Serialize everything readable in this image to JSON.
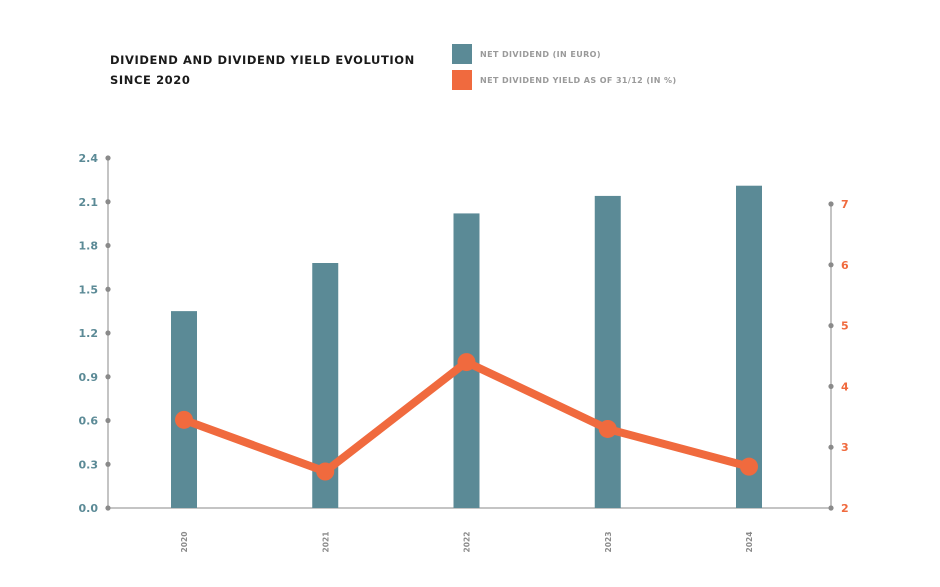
{
  "title_line1": "DIVIDEND AND DIVIDEND YIELD EVOLUTION",
  "title_line2": "SINCE 2020",
  "colors": {
    "bar": "#5b8a96",
    "line": "#f06a3e",
    "left_axis_text": "#5b8a96",
    "right_axis_text": "#f06a3e",
    "axis": "#8a8a8a"
  },
  "chart_data": {
    "type": "bar",
    "legend_position": "top",
    "grid": false,
    "categories": [
      "2020",
      "2021",
      "2022",
      "2023",
      "2024"
    ],
    "series": [
      {
        "name": "NET DIVIDEND (IN  EURO)",
        "type": "bar",
        "axis": "left",
        "values": [
          1.35,
          1.68,
          2.02,
          2.14,
          2.21
        ]
      },
      {
        "name": "NET DIVIDEND YIELD AS OF 31/12 (IN  %)",
        "type": "line",
        "axis": "right",
        "values": [
          3.45,
          2.6,
          4.4,
          3.3,
          2.68
        ]
      }
    ],
    "y_left": {
      "ticks": [
        "0.0",
        "0.3",
        "0.6",
        "0.9",
        "1.2",
        "1.5",
        "1.8",
        "2.1",
        "2.4"
      ],
      "ylim": [
        0,
        2.4
      ]
    },
    "y_right": {
      "ticks": [
        "2",
        "3",
        "4",
        "5",
        "6",
        "7"
      ],
      "ylim": [
        2,
        7
      ]
    }
  }
}
